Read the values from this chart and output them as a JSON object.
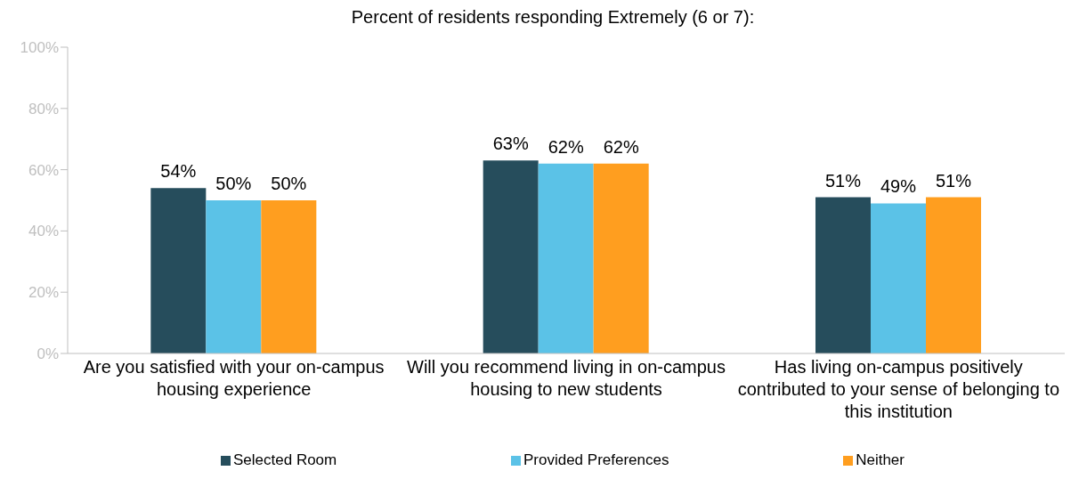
{
  "chart_data": {
    "type": "bar",
    "title": "Percent of residents responding Extremely (6 or 7):",
    "categories": [
      "Are you satisfied with your on-campus housing experience",
      "Will you recommend living in on-campus housing to new students",
      "Has living on-campus positively contributed to your sense of belonging to this institution"
    ],
    "series": [
      {
        "name": "Selected Room",
        "color": "#264d5c",
        "values": [
          54,
          63,
          51
        ],
        "value_labels": [
          "54%",
          "63%",
          "51%"
        ]
      },
      {
        "name": "Provided Preferences",
        "color": "#5bc2e7",
        "values": [
          50,
          62,
          49
        ],
        "value_labels": [
          "50%",
          "62%",
          "49%"
        ]
      },
      {
        "name": "Neither",
        "color": "#ff9e1f",
        "values": [
          50,
          62,
          51
        ],
        "value_labels": [
          "50%",
          "62%",
          "51%"
        ]
      }
    ],
    "ylim": [
      0,
      100
    ],
    "yticks": [
      {
        "value": 0,
        "label": "0%"
      },
      {
        "value": 20,
        "label": "20%"
      },
      {
        "value": 40,
        "label": "40%"
      },
      {
        "value": 60,
        "label": "60%"
      },
      {
        "value": 80,
        "label": "80%"
      },
      {
        "value": 100,
        "label": "100%"
      }
    ],
    "grid": false,
    "legend": "bottom"
  }
}
